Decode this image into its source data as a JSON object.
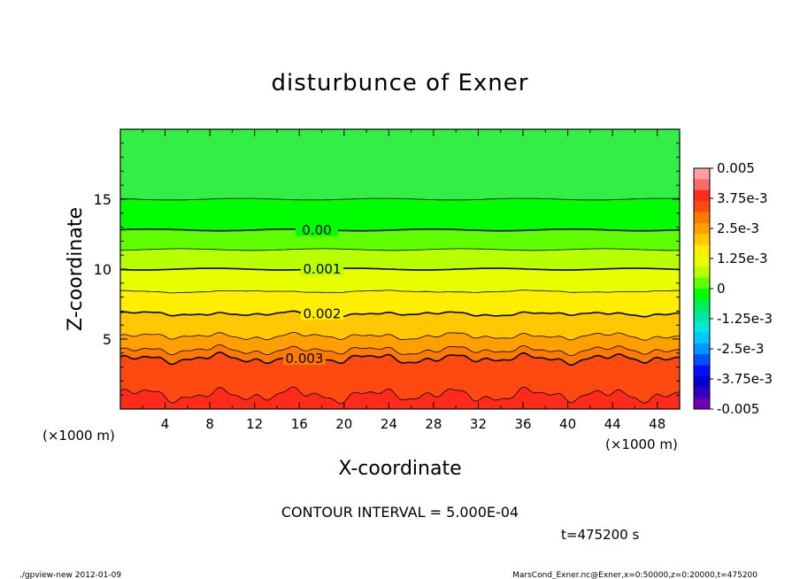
{
  "chart_data": {
    "type": "contour",
    "title": "disturbunce of Exner",
    "xlabel": "X-coordinate",
    "ylabel": "Z-coordinate",
    "x_unit": "(×1000 m)",
    "y_unit": "(×1000 m)",
    "xlim": [
      0,
      50
    ],
    "ylim": [
      0,
      20
    ],
    "x_ticks": [
      4,
      8,
      12,
      16,
      20,
      24,
      28,
      32,
      36,
      40,
      44,
      48
    ],
    "y_ticks": [
      5,
      10,
      15
    ],
    "contour_interval_text": "CONTOUR INTERVAL = 5.000E-04",
    "time_text": "t=475200 s",
    "contour_labels": [
      {
        "text": "0.00",
        "level": 0.0,
        "z": 12.8
      },
      {
        "text": "0.001",
        "level": 0.001,
        "z": 10.0
      },
      {
        "text": "0.002",
        "level": 0.002,
        "z": 6.8
      },
      {
        "text": "0.003",
        "level": 0.003,
        "z": 3.6
      }
    ],
    "colorbar": {
      "range": [
        -0.005,
        0.005
      ],
      "labels": [
        "0.005",
        "3.75e-3",
        "2.5e-3",
        "1.25e-3",
        "0",
        "-1.25e-3",
        "-2.5e-3",
        "-3.75e-3",
        "-0.005"
      ],
      "colors": [
        "#fca0a0",
        "#fd6a6a",
        "#fe2a1a",
        "#fe4a10",
        "#ff7a00",
        "#ffa000",
        "#ffc800",
        "#ffee00",
        "#e8ff00",
        "#b8ff00",
        "#60ff00",
        "#00ff00",
        "#00ee55",
        "#00e8a0",
        "#00e8d8",
        "#00c8ff",
        "#0096ff",
        "#0050ff",
        "#0010ff",
        "#0000d0",
        "#3000c0",
        "#7000b0"
      ]
    },
    "field_bands": [
      {
        "z0": 0,
        "z1": 1.0,
        "color": "#fe2a1a"
      },
      {
        "z0": 1.0,
        "z1": 3.6,
        "color": "#fe4a10"
      },
      {
        "z0": 3.6,
        "z1": 4.2,
        "color": "#ff7a00"
      },
      {
        "z0": 4.2,
        "z1": 5.2,
        "color": "#ffa000"
      },
      {
        "z0": 5.2,
        "z1": 6.8,
        "color": "#ffc800"
      },
      {
        "z0": 6.8,
        "z1": 8.4,
        "color": "#ffee00"
      },
      {
        "z0": 8.4,
        "z1": 10.0,
        "color": "#e8ff00"
      },
      {
        "z0": 10.0,
        "z1": 11.4,
        "color": "#b8ff00"
      },
      {
        "z0": 11.4,
        "z1": 12.8,
        "color": "#60ff00"
      },
      {
        "z0": 12.8,
        "z1": 15.0,
        "color": "#00ff00"
      },
      {
        "z0": 15.0,
        "z1": 20.0,
        "color": "#33ee44"
      }
    ]
  },
  "footer": {
    "left": "./gpview-new  2012-01-09",
    "right": "MarsCond_Exner.nc@Exner,x=0:50000,z=0:20000,t=475200"
  }
}
